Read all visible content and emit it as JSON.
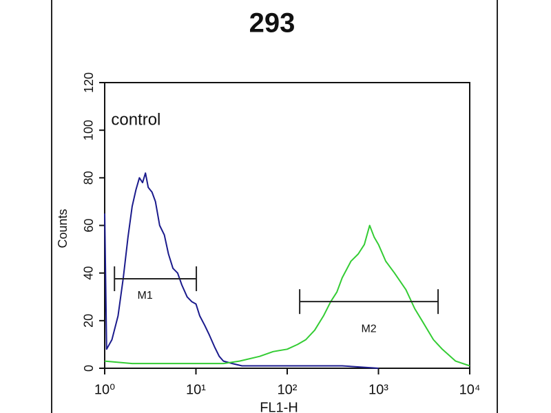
{
  "chart_data": {
    "type": "line",
    "title": "293",
    "xlabel": "FL1-H",
    "ylabel": "Counts",
    "log_x": true,
    "xlim": [
      1,
      10000
    ],
    "ylim": [
      0,
      120
    ],
    "xticks": [
      {
        "value": 1,
        "label": "10⁰"
      },
      {
        "value": 10,
        "label": "10¹"
      },
      {
        "value": 100,
        "label": "10²"
      },
      {
        "value": 1000,
        "label": "10³"
      },
      {
        "value": 10000,
        "label": "10⁴"
      }
    ],
    "yticks": [
      0,
      20,
      40,
      60,
      80,
      100,
      120
    ],
    "annotations": [
      {
        "text": "control",
        "x": 2.2,
        "y": 104
      }
    ],
    "markers": [
      {
        "label": "M1",
        "range": [
          1.28,
          10.1
        ],
        "y": 37.6
      },
      {
        "label": "M2",
        "range": [
          137,
          4500
        ],
        "y": 28
      }
    ],
    "series": [
      {
        "color": "#1a1a8c",
        "x": [
          1,
          1.05,
          1.2,
          1.4,
          1.6,
          1.8,
          2,
          2.2,
          2.4,
          2.6,
          2.8,
          3,
          3.3,
          3.6,
          4,
          4.5,
          5,
          5.6,
          6.3,
          7,
          8,
          9,
          10,
          11,
          12.5,
          14,
          16,
          18,
          20,
          25,
          32,
          40,
          60,
          100,
          200,
          400,
          1000
        ],
        "values": [
          65,
          8,
          12,
          22,
          38,
          55,
          68,
          75,
          80,
          78,
          82,
          76,
          74,
          70,
          60,
          56,
          48,
          42,
          40,
          35,
          30,
          28,
          27,
          22,
          18,
          14,
          9,
          5,
          3,
          2,
          1,
          1,
          1,
          1,
          1,
          1,
          0
        ]
      },
      {
        "color": "#33cc33",
        "x": [
          1,
          2,
          5,
          10,
          20,
          30,
          50,
          70,
          100,
          130,
          160,
          200,
          250,
          300,
          350,
          400,
          500,
          600,
          700,
          800,
          900,
          1000,
          1200,
          1500,
          2000,
          2500,
          3000,
          4000,
          5000,
          7000,
          10000
        ],
        "values": [
          3,
          2,
          2,
          2,
          2,
          3,
          5,
          7,
          8,
          10,
          12,
          16,
          22,
          28,
          32,
          38,
          45,
          48,
          52,
          60,
          55,
          52,
          45,
          40,
          33,
          25,
          20,
          12,
          8,
          3,
          1
        ]
      }
    ]
  }
}
